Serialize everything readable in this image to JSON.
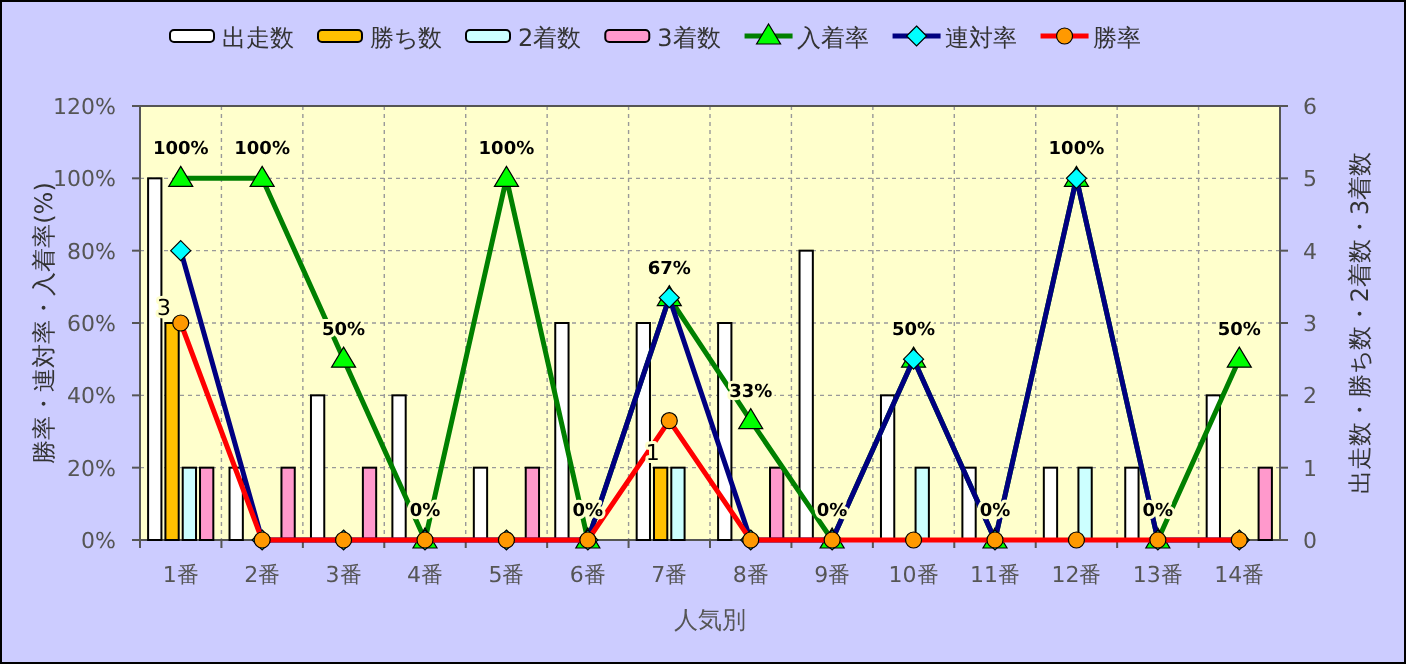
{
  "chart_data": {
    "type": "bar",
    "xlabel": "人気別",
    "ylabel": "勝率・連対率・入着率(%)",
    "y2label": "出走数・勝ち数・2着数・3着数",
    "categories": [
      "1番",
      "2番",
      "3番",
      "4番",
      "5番",
      "6番",
      "7番",
      "8番",
      "9番",
      "10番",
      "11番",
      "12番",
      "13番",
      "14番"
    ],
    "series": [
      {
        "name": "出走数",
        "axis": "y2",
        "color": "#ffffff",
        "values": [
          5,
          1,
          2,
          2,
          1,
          3,
          3,
          3,
          4,
          2,
          1,
          1,
          1,
          2
        ]
      },
      {
        "name": "勝ち数",
        "axis": "y2",
        "color": "#ffc000",
        "values": [
          3,
          0,
          0,
          0,
          0,
          0,
          1,
          0,
          0,
          0,
          0,
          0,
          0,
          0
        ],
        "value_labels": [
          "3",
          null,
          null,
          null,
          null,
          null,
          "1",
          null,
          null,
          null,
          null,
          null,
          null,
          null
        ]
      },
      {
        "name": "2着数",
        "axis": "y2",
        "color": "#ccffff",
        "values": [
          1,
          0,
          0,
          0,
          0,
          0,
          1,
          0,
          0,
          1,
          0,
          1,
          0,
          0
        ]
      },
      {
        "name": "3着数",
        "axis": "y2",
        "color": "#ff99cc",
        "values": [
          1,
          1,
          1,
          0,
          1,
          0,
          0,
          1,
          0,
          0,
          0,
          0,
          0,
          1
        ]
      },
      {
        "name": "入着率",
        "type": "line",
        "axis": "y",
        "color": "#008000",
        "marker": "triangle",
        "values": [
          100,
          100,
          50,
          0,
          100,
          0,
          67,
          33,
          0,
          50,
          0,
          100,
          0,
          50
        ],
        "value_labels": [
          "100%",
          "100%",
          "50%",
          "0%",
          "100%",
          "0%",
          "67%",
          "33%",
          "0%",
          "50%",
          "0%",
          "100%",
          "0%",
          "50%"
        ]
      },
      {
        "name": "連対率",
        "type": "line",
        "axis": "y",
        "color": "#000080",
        "marker": "diamond",
        "values": [
          80,
          0,
          0,
          0,
          0,
          0,
          67,
          0,
          0,
          50,
          0,
          100,
          0,
          0
        ]
      },
      {
        "name": "勝率",
        "type": "line",
        "axis": "y",
        "color": "#ff0000",
        "marker": "circle",
        "values": [
          60,
          0,
          0,
          0,
          0,
          0,
          33,
          0,
          0,
          0,
          0,
          0,
          0,
          0
        ]
      }
    ],
    "ylim": [
      0,
      120
    ],
    "yticks": [
      {
        "value": 0,
        "label": "0%"
      },
      {
        "value": 20,
        "label": "20%"
      },
      {
        "value": 40,
        "label": "40%"
      },
      {
        "value": 60,
        "label": "60%"
      },
      {
        "value": 80,
        "label": "80%"
      },
      {
        "value": 100,
        "label": "100%"
      },
      {
        "value": 120,
        "label": "120%"
      }
    ],
    "y2lim": [
      0,
      6
    ],
    "y2ticks": [
      0,
      1,
      2,
      3,
      4,
      5,
      6
    ],
    "grid": true,
    "legend": "top"
  }
}
